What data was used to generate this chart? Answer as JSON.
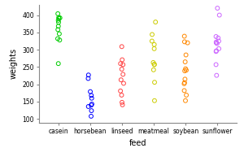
{
  "feed_groups": [
    "casein",
    "horsebean",
    "linseed",
    "meatmeal",
    "soybean",
    "sunflower"
  ],
  "colors": [
    "#00CC00",
    "#0000FF",
    "#FF4444",
    "#CCCC00",
    "#FF8800",
    "#CC66FF"
  ],
  "data": {
    "casein": [
      368,
      390,
      379,
      260,
      404,
      393,
      358,
      328,
      392,
      332,
      346,
      385
    ],
    "horsebean": [
      179,
      160,
      136,
      227,
      217,
      168,
      108,
      124,
      143,
      140
    ],
    "linseed": [
      309,
      229,
      181,
      141,
      260,
      203,
      148,
      169,
      213,
      257,
      244,
      271
    ],
    "meatmeal": [
      325,
      257,
      303,
      315,
      380,
      153,
      263,
      242,
      206,
      344,
      258
    ],
    "soybean": [
      169,
      205,
      182,
      215,
      265,
      285,
      153,
      320,
      202,
      323,
      339,
      241,
      239,
      245
    ],
    "sunflower": [
      226,
      320,
      295,
      334,
      322,
      297,
      318,
      325,
      257,
      303,
      338,
      400,
      420
    ]
  },
  "ylim": [
    90,
    430
  ],
  "yticks": [
    100,
    150,
    200,
    250,
    300,
    350,
    400
  ],
  "xlabel": "feed",
  "ylabel": "weights",
  "bg_color": "#FFFFFF",
  "marker_size": 3.5,
  "marker_lw": 0.7,
  "tick_fontsize": 5.5,
  "label_fontsize": 7.0
}
